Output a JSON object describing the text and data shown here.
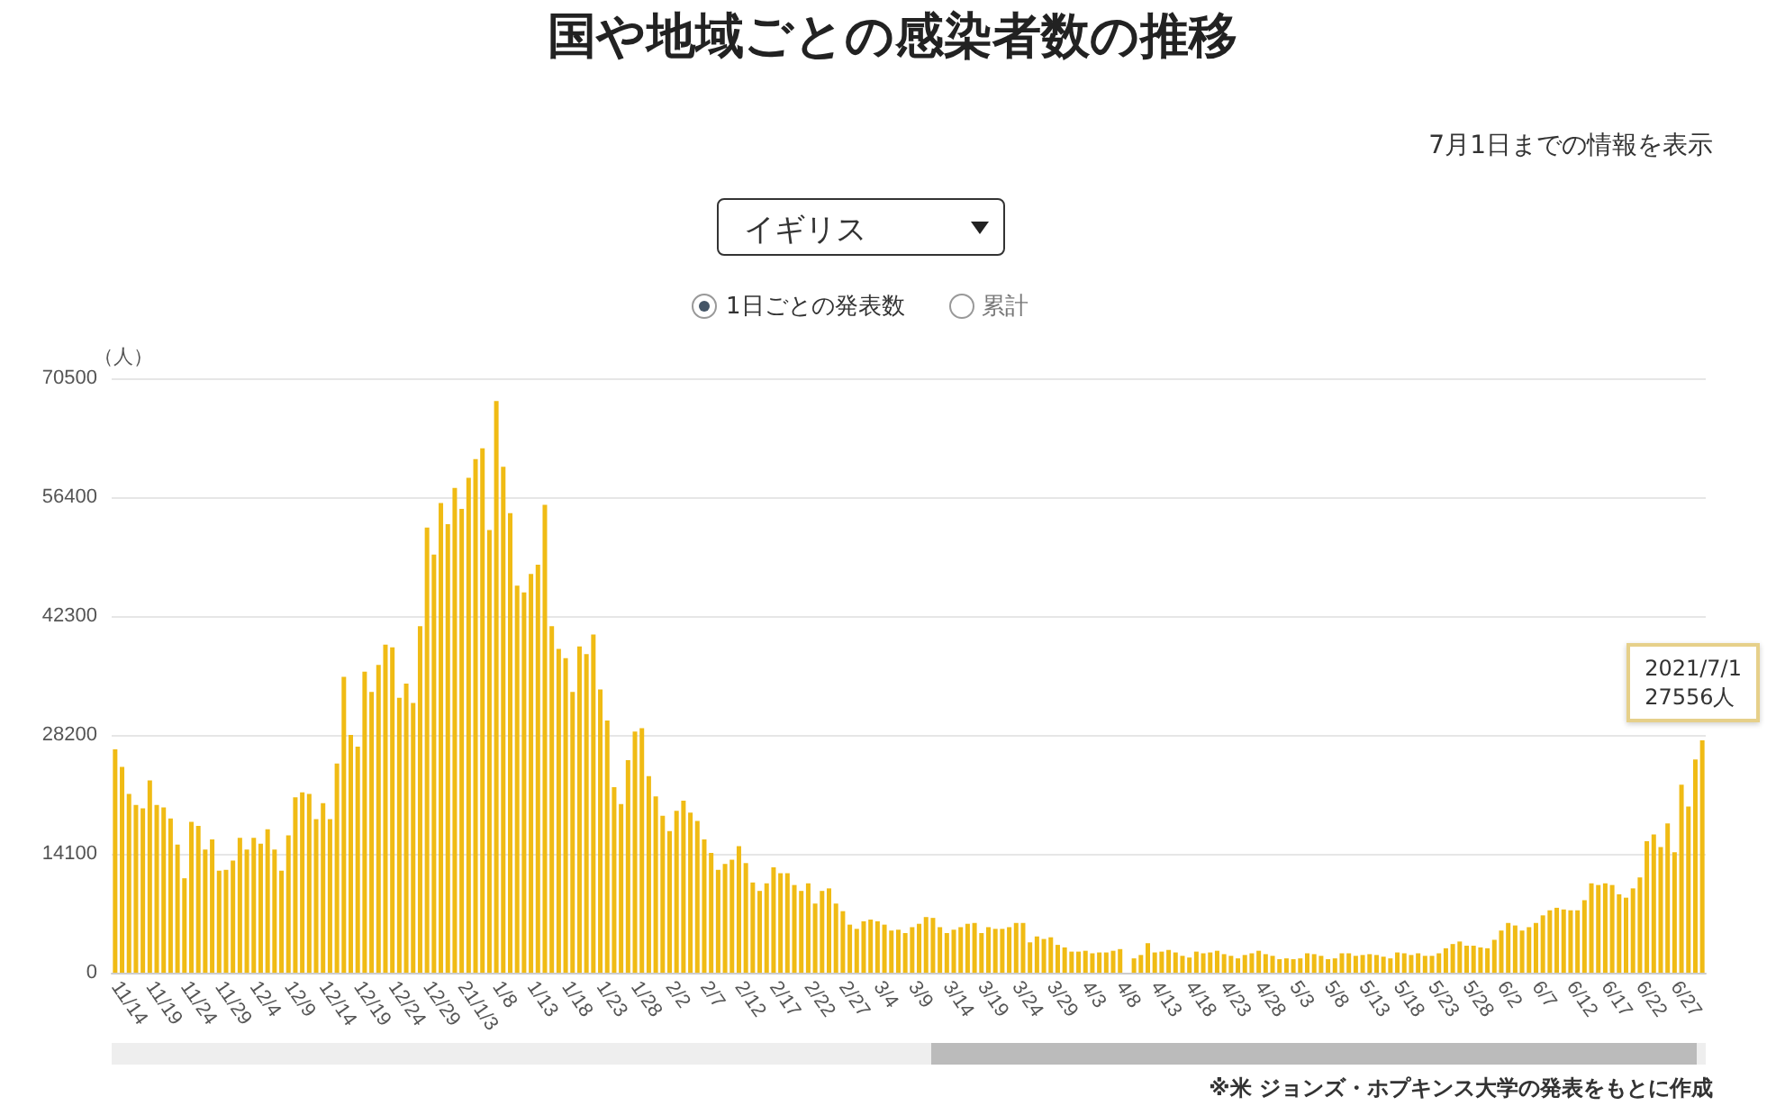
{
  "chart_data": {
    "type": "bar",
    "title": "国や地域ごとの感染者数の推移",
    "ylabel": "（人）",
    "annotations": [
      "7月1日までの情報を表示",
      "イギリス",
      "1日ごとの発表数",
      "累計",
      "2021/7/1\n27556人",
      "※米 ジョンズ・ホプキンス大学の発表をもとに作成"
    ],
    "categories": [
      "11/14",
      null,
      null,
      null,
      null,
      "11/19",
      null,
      null,
      null,
      null,
      "11/24",
      null,
      null,
      null,
      null,
      "11/29",
      null,
      null,
      null,
      null,
      "12/4",
      null,
      null,
      null,
      null,
      "12/9",
      null,
      null,
      null,
      null,
      "12/14",
      null,
      null,
      null,
      null,
      "12/19",
      null,
      null,
      null,
      null,
      "12/24",
      null,
      null,
      null,
      null,
      "12/29",
      null,
      null,
      null,
      null,
      "21/1/3",
      null,
      null,
      null,
      null,
      "1/8",
      null,
      null,
      null,
      null,
      "1/13",
      null,
      null,
      null,
      null,
      "1/18",
      null,
      null,
      null,
      null,
      "1/23",
      null,
      null,
      null,
      null,
      "1/28",
      null,
      null,
      null,
      null,
      "2/2",
      null,
      null,
      null,
      null,
      "2/7",
      null,
      null,
      null,
      null,
      "2/12",
      null,
      null,
      null,
      null,
      "2/17",
      null,
      null,
      null,
      null,
      "2/22",
      null,
      null,
      null,
      null,
      "2/27",
      null,
      null,
      null,
      null,
      "3/4",
      null,
      null,
      null,
      null,
      "3/9",
      null,
      null,
      null,
      null,
      "3/14",
      null,
      null,
      null,
      null,
      "3/19",
      null,
      null,
      null,
      null,
      "3/24",
      null,
      null,
      null,
      null,
      "3/29",
      null,
      null,
      null,
      null,
      "4/3",
      null,
      null,
      null,
      null,
      "4/8",
      null,
      null,
      null,
      null,
      "4/13",
      null,
      null,
      null,
      null,
      "4/18",
      null,
      null,
      null,
      null,
      "4/23",
      null,
      null,
      null,
      null,
      "4/28",
      null,
      null,
      null,
      null,
      "5/3",
      null,
      null,
      null,
      null,
      "5/8",
      null,
      null,
      null,
      null,
      "5/13",
      null,
      null,
      null,
      null,
      "5/18",
      null,
      null,
      null,
      null,
      "5/23",
      null,
      null,
      null,
      null,
      "5/28",
      null,
      null,
      null,
      null,
      "6/2",
      null,
      null,
      null,
      null,
      "6/7",
      null,
      null,
      null,
      null,
      "6/12",
      null,
      null,
      null,
      null,
      "6/17",
      null,
      null,
      null,
      null,
      "6/22",
      null,
      null,
      null,
      null,
      "6/27",
      null,
      null,
      null,
      null
    ],
    "values": [
      26500,
      24400,
      21200,
      19900,
      19500,
      22800,
      19900,
      19600,
      18300,
      15200,
      11200,
      17900,
      17400,
      14600,
      15800,
      12100,
      12200,
      13300,
      16000,
      14600,
      16000,
      15300,
      17000,
      14600,
      12100,
      16300,
      20800,
      21400,
      21200,
      18200,
      20100,
      18200,
      24800,
      35100,
      28200,
      26800,
      35700,
      33300,
      36500,
      38900,
      38600,
      32600,
      34300,
      32000,
      41100,
      52800,
      49600,
      55700,
      53200,
      57500,
      55000,
      58700,
      60900,
      62200,
      52500,
      67800,
      60000,
      54500,
      45900,
      45100,
      47300,
      48400,
      55500,
      41100,
      38400,
      37300,
      33300,
      38700,
      37800,
      40100,
      33600,
      29900,
      22000,
      20000,
      25200,
      28600,
      29000,
      23300,
      20900,
      18600,
      16800,
      19200,
      20400,
      19000,
      18000,
      15800,
      14200,
      12200,
      12900,
      13400,
      15000,
      13000,
      10700,
      9700,
      10600,
      12500,
      11800,
      11800,
      10400,
      9700,
      10600,
      8200,
      9700,
      10000,
      8200,
      7300,
      5700,
      5200,
      6100,
      6300,
      6100,
      5700,
      5000,
      5100,
      4700,
      5400,
      5800,
      6600,
      6500,
      5400,
      4700,
      5100,
      5400,
      5800,
      5900,
      4700,
      5400,
      5200,
      5200,
      5400,
      5900,
      5900,
      3600,
      4300,
      4000,
      4200,
      3300,
      3000,
      2500,
      2500,
      2600,
      2300,
      2400,
      2400,
      2600,
      2800,
      null,
      1700,
      2100,
      3500,
      2400,
      2500,
      2700,
      2400,
      2000,
      1800,
      2500,
      2300,
      2400,
      2600,
      2200,
      2000,
      1700,
      2100,
      2300,
      2600,
      2200,
      2000,
      1600,
      1700,
      1600,
      1700,
      2300,
      2200,
      2000,
      1600,
      1700,
      2300,
      2300,
      2000,
      2100,
      2200,
      2100,
      1900,
      1700,
      2400,
      2300,
      2100,
      2300,
      2000,
      2000,
      2300,
      2900,
      3400,
      3700,
      3200,
      3200,
      3000,
      2900,
      3900,
      5000,
      5900,
      5600,
      5000,
      5400,
      5900,
      6800,
      7400,
      7700,
      7500,
      7400,
      7400,
      8600,
      10600,
      10400,
      10600,
      10400,
      9300,
      8900,
      10000,
      11300,
      15600,
      16400,
      14900,
      17700,
      14300,
      22300,
      19700,
      25300,
      27556
    ],
    "color": "#f0bb14",
    "ylim": [
      0,
      70500
    ],
    "yticks": [
      0,
      14100,
      28200,
      42300,
      56400,
      70500
    ],
    "grid": "y"
  }
}
